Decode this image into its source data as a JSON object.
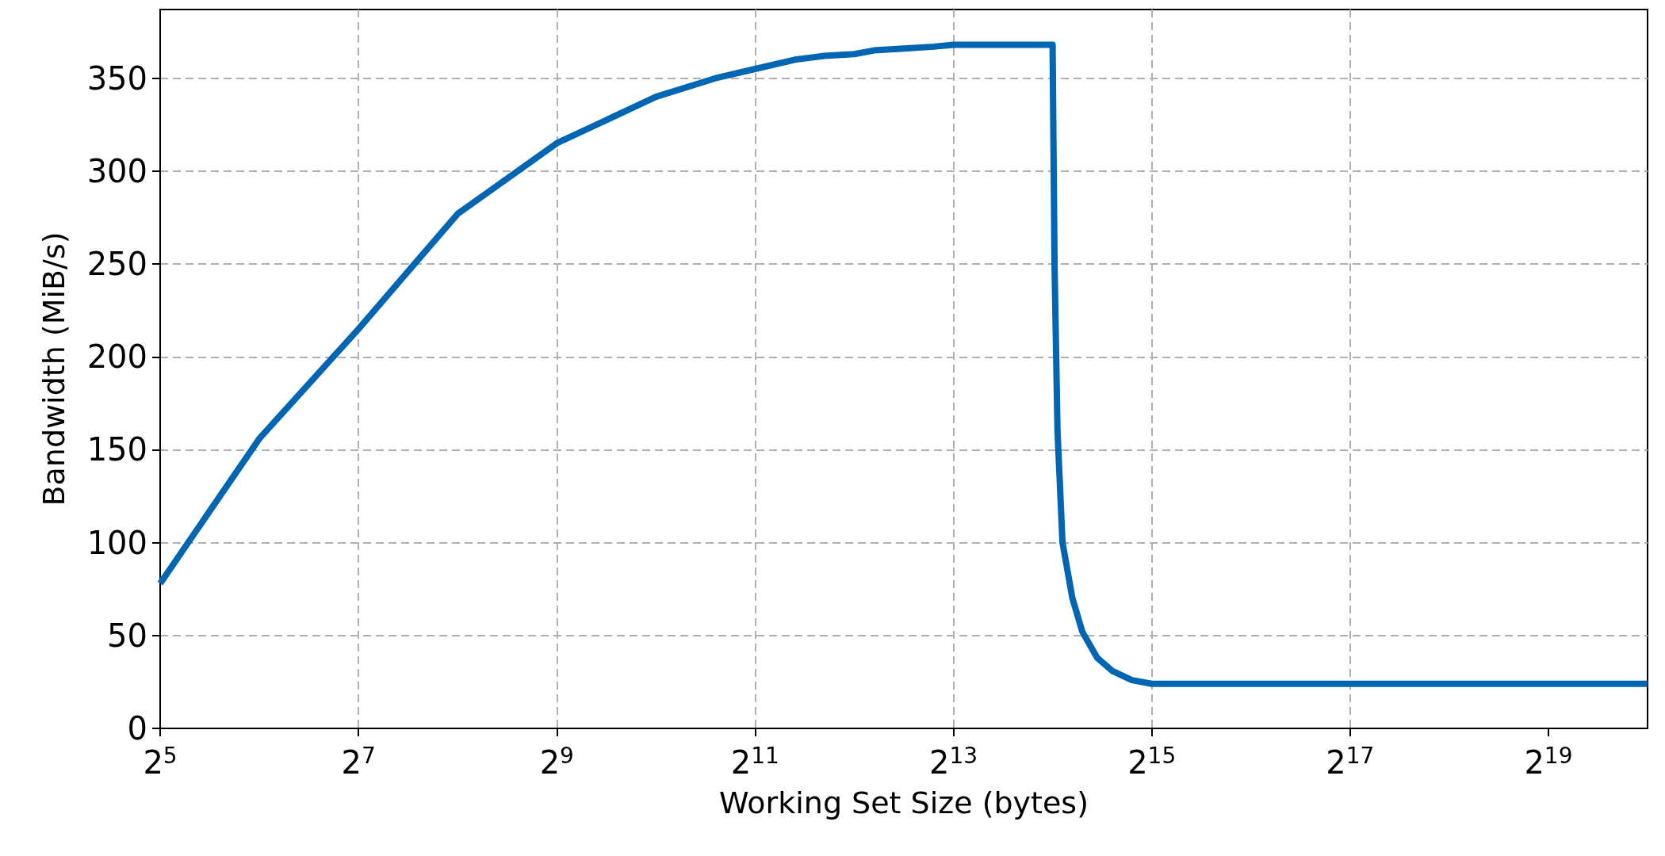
{
  "chart_data": {
    "type": "line",
    "xlabel": "Working Set Size (bytes)",
    "ylabel": "Bandwidth (MiB/s)",
    "log": "x",
    "grid": true,
    "marker": "none",
    "line_style": "solid",
    "xlim": [
      32,
      1048576
    ],
    "ylim": [
      0,
      387
    ],
    "xticks": [
      {
        "value": 32,
        "label": "2$^{5}$"
      },
      {
        "value": 128,
        "label": "2$^{7}$"
      },
      {
        "value": 512,
        "label": "2$^{9}$"
      },
      {
        "value": 2048,
        "label": "2$^{11}$"
      },
      {
        "value": 8192,
        "label": "2$^{13}$"
      },
      {
        "value": 32768,
        "label": "2$^{15}$"
      },
      {
        "value": 131072,
        "label": "2$^{17}$"
      },
      {
        "value": 524288,
        "label": "2$^{19}$"
      }
    ],
    "yticks": [
      0,
      50,
      100,
      150,
      200,
      250,
      300,
      350
    ],
    "series": [
      {
        "color": "#0066b3",
        "x": [
          32,
          64,
          128,
          256,
          512,
          1024,
          1552,
          2048,
          2702,
          3327,
          4096,
          4705,
          5793,
          7132,
          8192,
          16384,
          16607,
          16955,
          17560,
          18820,
          20171,
          22381,
          24834,
          28526,
          32768,
          1048576
        ],
        "values": [
          78,
          156,
          215,
          277,
          315,
          340,
          350,
          355,
          360,
          362,
          363,
          365,
          366,
          367,
          368,
          368,
          250,
          160,
          100,
          70,
          52,
          38,
          31,
          26,
          24,
          24
        ]
      }
    ]
  }
}
